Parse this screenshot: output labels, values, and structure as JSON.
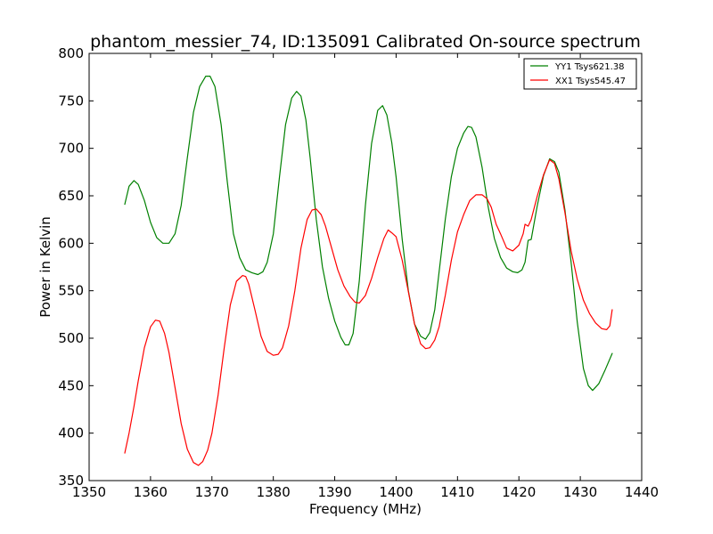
{
  "chart_data": {
    "type": "line",
    "title": "phantom_messier_74, ID:135091 Calibrated On-source spectrum",
    "xlabel": "Frequency (MHz)",
    "ylabel": "Power in Kelvin",
    "xlim": [
      1350,
      1440
    ],
    "ylim": [
      350,
      800
    ],
    "xticks": [
      "1350",
      "1360",
      "1370",
      "1380",
      "1390",
      "1400",
      "1410",
      "1420",
      "1430",
      "1440"
    ],
    "yticks": [
      "350",
      "400",
      "450",
      "500",
      "550",
      "600",
      "650",
      "700",
      "750",
      "800"
    ],
    "grid": false,
    "legend_position": "top-right",
    "series": [
      {
        "name": "YY1 Tsys621.38",
        "color": "#008000",
        "x": [
          1355.8,
          1356.5,
          1357.3,
          1358.0,
          1359.0,
          1360.0,
          1361.0,
          1362.0,
          1363.0,
          1364.0,
          1365.0,
          1366.0,
          1367.0,
          1368.0,
          1369.0,
          1369.7,
          1370.5,
          1371.5,
          1372.5,
          1373.5,
          1374.5,
          1375.5,
          1376.5,
          1377.5,
          1378.3,
          1379.0,
          1380.0,
          1381.0,
          1382.0,
          1383.0,
          1383.8,
          1384.5,
          1385.3,
          1386.0,
          1387.0,
          1388.0,
          1389.0,
          1390.0,
          1391.0,
          1391.7,
          1392.3,
          1393.0,
          1394.0,
          1395.0,
          1396.0,
          1397.0,
          1397.8,
          1398.5,
          1399.3,
          1400.0,
          1401.0,
          1402.0,
          1403.0,
          1404.0,
          1404.8,
          1405.5,
          1406.3,
          1407.0,
          1408.0,
          1409.0,
          1410.0,
          1411.0,
          1411.7,
          1412.3,
          1413.0,
          1414.0,
          1415.0,
          1416.0,
          1417.0,
          1418.0,
          1419.0,
          1419.8,
          1420.5,
          1421.0,
          1421.5,
          1422.0,
          1423.0,
          1424.0,
          1425.0,
          1425.8,
          1426.5,
          1427.5,
          1428.5,
          1429.5,
          1430.5,
          1431.3,
          1432.0,
          1433.0,
          1434.0,
          1435.2
        ],
        "values": [
          641,
          660,
          666,
          662,
          645,
          622,
          606,
          600,
          600,
          610,
          640,
          690,
          738,
          765,
          776,
          776,
          765,
          725,
          665,
          610,
          585,
          572,
          569,
          567,
          570,
          580,
          610,
          670,
          725,
          753,
          760,
          755,
          730,
          690,
          625,
          575,
          542,
          518,
          501,
          493,
          493,
          505,
          560,
          640,
          705,
          740,
          745,
          735,
          706,
          670,
          604,
          550,
          515,
          502,
          499,
          506,
          530,
          570,
          625,
          670,
          700,
          716,
          723,
          722,
          712,
          680,
          638,
          605,
          585,
          574,
          570,
          569,
          572,
          580,
          603,
          604,
          640,
          671,
          689,
          686,
          675,
          635,
          580,
          517,
          468,
          450,
          445,
          452,
          466,
          484
        ]
      },
      {
        "name": "XX1 Tsys545.47",
        "color": "#ff0000",
        "x": [
          1355.8,
          1356.5,
          1357.3,
          1358.0,
          1359.0,
          1360.0,
          1360.8,
          1361.5,
          1362.3,
          1363.0,
          1364.0,
          1365.0,
          1366.0,
          1367.0,
          1367.8,
          1368.5,
          1369.3,
          1370.0,
          1371.0,
          1372.0,
          1373.0,
          1374.0,
          1375.0,
          1375.5,
          1376.0,
          1377.0,
          1378.0,
          1379.0,
          1380.0,
          1380.8,
          1381.5,
          1382.5,
          1383.5,
          1384.5,
          1385.5,
          1386.3,
          1387.0,
          1387.8,
          1388.5,
          1389.5,
          1390.5,
          1391.5,
          1392.5,
          1393.3,
          1394.0,
          1395.0,
          1396.0,
          1397.0,
          1398.0,
          1398.7,
          1399.3,
          1400.0,
          1401.0,
          1402.0,
          1403.0,
          1404.0,
          1404.8,
          1405.5,
          1406.3,
          1407.0,
          1408.0,
          1409.0,
          1410.0,
          1411.0,
          1412.0,
          1413.0,
          1414.0,
          1414.8,
          1415.5,
          1416.3,
          1417.0,
          1418.0,
          1419.0,
          1420.0,
          1420.7,
          1421.0,
          1421.5,
          1422.0,
          1423.0,
          1424.0,
          1425.0,
          1425.8,
          1426.5,
          1427.5,
          1428.5,
          1429.5,
          1430.5,
          1431.5,
          1432.5,
          1433.5,
          1434.3,
          1434.8,
          1435.2
        ],
        "values": [
          379,
          400,
          428,
          455,
          490,
          512,
          519,
          518,
          505,
          485,
          448,
          410,
          383,
          369,
          366,
          370,
          382,
          400,
          440,
          490,
          535,
          560,
          566,
          565,
          557,
          530,
          502,
          486,
          482,
          483,
          490,
          513,
          550,
          595,
          625,
          635,
          636,
          630,
          618,
          595,
          572,
          555,
          544,
          538,
          537,
          545,
          563,
          585,
          605,
          614,
          611,
          607,
          582,
          549,
          515,
          494,
          489,
          490,
          498,
          512,
          545,
          582,
          612,
          630,
          645,
          651,
          651,
          647,
          638,
          620,
          610,
          595,
          592,
          598,
          610,
          620,
          618,
          625,
          650,
          672,
          688,
          684,
          668,
          632,
          592,
          562,
          540,
          526,
          516,
          510,
          509,
          513,
          530
        ]
      }
    ]
  }
}
